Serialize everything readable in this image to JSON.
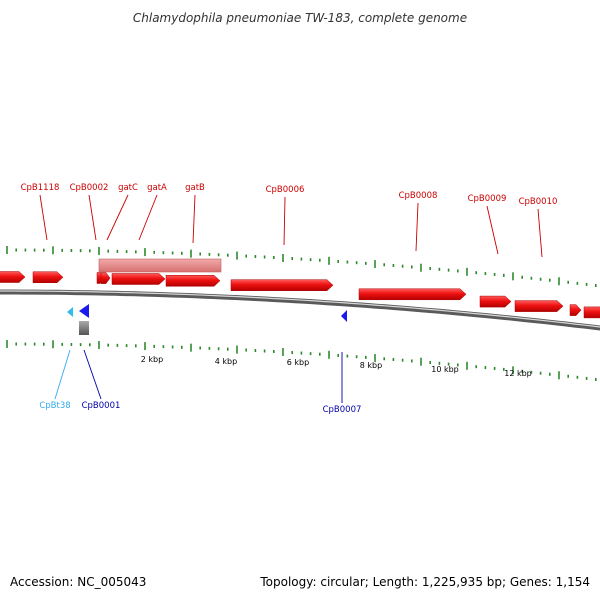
{
  "title": "Chlamydophila pneumoniae TW-183, complete genome",
  "footer": {
    "accession": "Accession: NC_005043",
    "summary": "Topology: circular; Length: 1,225,935 bp; Genes: 1,154"
  },
  "colors": {
    "forward_gene": "#ee1111",
    "selected_region": "#e98080",
    "reverse_gene": "#1a1aee",
    "trna": "#33bbee",
    "other_feature": "#777777",
    "backbone": "#777777",
    "tick": "#2c8a2c",
    "label_forward": "#cc0000",
    "label_reverse": "#0000aa",
    "label_trna": "#33aaee"
  },
  "scale": {
    "unit": "kbp",
    "tick_labels": [
      "2 kbp",
      "4 kbp",
      "6 kbp",
      "8 kbp",
      "10 kbp",
      "12 kbp"
    ]
  },
  "genes_top": [
    {
      "label": "CpB1118"
    },
    {
      "label": "CpB0002"
    },
    {
      "label": "gatC"
    },
    {
      "label": "gatA"
    },
    {
      "label": "gatB"
    },
    {
      "label": "CpB0006"
    },
    {
      "label": "CpB0008"
    },
    {
      "label": "CpB0009"
    },
    {
      "label": "CpB0010"
    }
  ],
  "genes_bottom": [
    {
      "label": "CpBt38",
      "kind": "trna"
    },
    {
      "label": "CpB0001",
      "kind": "reverse"
    },
    {
      "label": "CpB0007",
      "kind": "reverse"
    }
  ]
}
